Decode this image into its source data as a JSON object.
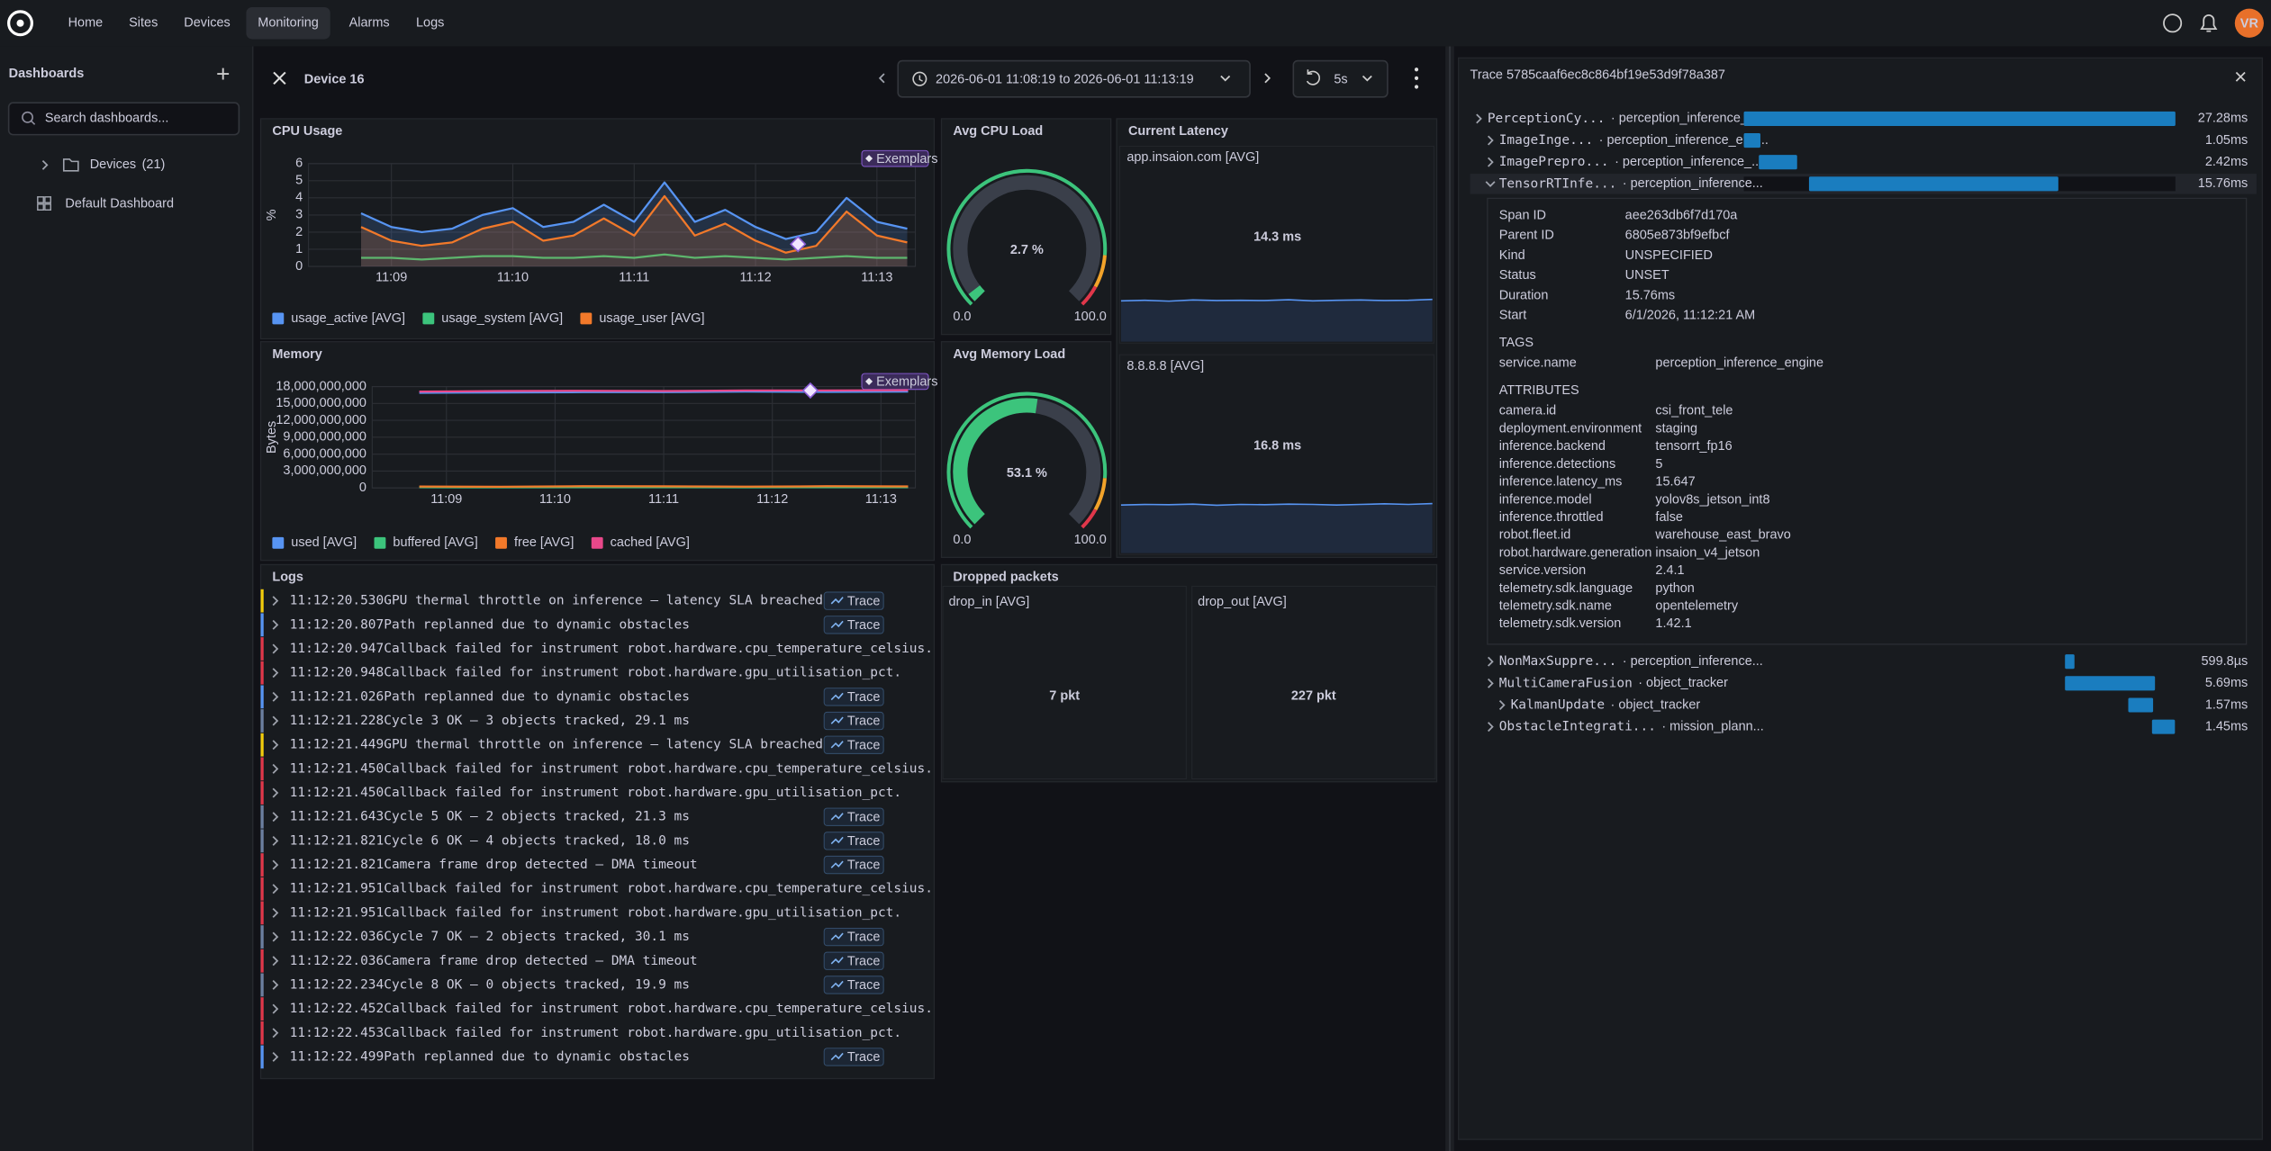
{
  "nav": {
    "items": [
      "Home",
      "Sites",
      "Devices",
      "Monitoring",
      "Alarms",
      "Logs"
    ],
    "active": 3,
    "avatar": "VR"
  },
  "sidebar": {
    "title": "Dashboards",
    "search_placeholder": "Search dashboards...",
    "tree": [
      {
        "label": "Devices",
        "count": "(21)",
        "icon": "folder"
      },
      {
        "label": "Default Dashboard",
        "icon": "dashboard"
      }
    ]
  },
  "header": {
    "title": "Device 16",
    "time_range": "2026-06-01 11:08:19 to 2026-06-01 11:13:19",
    "refresh": "5s"
  },
  "chart_data": [
    {
      "type": "line",
      "title": "CPU Usage",
      "badge": "Exemplars",
      "y_label": "%",
      "grid": true,
      "xlim": [
        "11:08:19",
        "11:13:19"
      ],
      "xticks": [
        "11:09",
        "11:10",
        "11:11",
        "11:12",
        "11:13"
      ],
      "ylim": [
        0,
        6
      ],
      "yticks": [
        0,
        1,
        2,
        3,
        4,
        5,
        6
      ],
      "x": [
        "11:08:45",
        "11:09:00",
        "11:09:15",
        "11:09:30",
        "11:09:45",
        "11:10:00",
        "11:10:15",
        "11:10:30",
        "11:10:45",
        "11:11:00",
        "11:11:15",
        "11:11:30",
        "11:11:45",
        "11:12:00",
        "11:12:15",
        "11:12:30",
        "11:12:45",
        "11:13:00",
        "11:13:15"
      ],
      "series": [
        {
          "name": "usage_active [AVG]",
          "color": "#5794f2",
          "area": true,
          "values": [
            3.1,
            2.3,
            2.0,
            2.2,
            3.0,
            3.4,
            2.3,
            2.6,
            3.6,
            2.6,
            4.9,
            2.6,
            3.3,
            2.3,
            1.6,
            2.0,
            4.0,
            2.6,
            2.2
          ]
        },
        {
          "name": "usage_system [AVG]",
          "color": "#3cc47c",
          "area": false,
          "values": [
            0.5,
            0.5,
            0.4,
            0.5,
            0.6,
            0.6,
            0.5,
            0.5,
            0.6,
            0.5,
            0.7,
            0.5,
            0.6,
            0.5,
            0.4,
            0.5,
            0.6,
            0.5,
            0.5
          ]
        },
        {
          "name": "usage_user [AVG]",
          "color": "#f2792a",
          "area": true,
          "values": [
            2.3,
            1.5,
            1.2,
            1.4,
            2.2,
            2.6,
            1.5,
            1.8,
            2.8,
            1.8,
            4.1,
            1.8,
            2.5,
            1.5,
            0.8,
            1.2,
            3.2,
            1.8,
            1.4
          ]
        }
      ],
      "exemplar": {
        "x": "11:12:21",
        "y": 1.3
      }
    },
    {
      "type": "line",
      "title": "Memory",
      "badge": "Exemplars",
      "y_label": "Bytes",
      "grid": true,
      "xlim": [
        "11:08:19",
        "11:13:19"
      ],
      "xticks": [
        "11:09",
        "11:10",
        "11:11",
        "11:12",
        "11:13"
      ],
      "ylim": [
        0,
        18000000000
      ],
      "yticks": [
        0,
        {
          "value": 3000000000,
          "label": "3,000,000,000"
        },
        {
          "value": 6000000000,
          "label": "6,000,000,000"
        },
        {
          "value": 9000000000,
          "label": "9,000,000,000"
        },
        {
          "value": 12000000000,
          "label": "12,000,000,000"
        },
        {
          "value": 15000000000,
          "label": "15,000,000,000"
        },
        {
          "value": 18000000000,
          "label": "18,000,000,000"
        }
      ],
      "x": [
        "11:08:45",
        "11:09:30",
        "11:10:15",
        "11:11:00",
        "11:11:45",
        "11:12:30",
        "11:13:15"
      ],
      "series": [
        {
          "name": "used [AVG]",
          "color": "#5794f2",
          "area": false,
          "values": [
            16900000000,
            16950000000,
            17000000000,
            17000000000,
            17100000000,
            17050000000,
            17100000000
          ]
        },
        {
          "name": "buffered [AVG]",
          "color": "#3cc47c",
          "area": false,
          "values": [
            120000000,
            110000000,
            130000000,
            120000000,
            110000000,
            130000000,
            120000000
          ]
        },
        {
          "name": "free [AVG]",
          "color": "#f2792a",
          "area": false,
          "values": [
            250000000,
            200000000,
            300000000,
            280000000,
            220000000,
            300000000,
            260000000
          ]
        },
        {
          "name": "cached [AVG]",
          "color": "#e8488a",
          "area": false,
          "values": [
            17100000000,
            17200000000,
            17250000000,
            17200000000,
            17300000000,
            17300000000,
            17350000000
          ]
        }
      ],
      "exemplar": {
        "x": "11:12:21",
        "y": 17300000000
      }
    },
    {
      "type": "gauge",
      "title": "Avg CPU Load",
      "value": 2.7,
      "value_label": "2.7 %",
      "color": "#3cc47c",
      "min": {
        "value": 0,
        "label": "0.0"
      },
      "max": {
        "value": 100,
        "label": "100.0"
      },
      "thresholds": [
        {
          "value": 0,
          "color": "#3cc47c"
        },
        {
          "value": 85,
          "color": "#f2a32a"
        },
        {
          "value": 94,
          "color": "#e0374a"
        }
      ]
    },
    {
      "type": "gauge",
      "title": "Avg Memory Load",
      "value": 53.1,
      "value_label": "53.1 %",
      "color": "#3cc47c",
      "min": {
        "value": 0,
        "label": "0.0"
      },
      "max": {
        "value": 100,
        "label": "100.0"
      },
      "thresholds": [
        {
          "value": 0,
          "color": "#3cc47c"
        },
        {
          "value": 85,
          "color": "#f2a32a"
        },
        {
          "value": 94,
          "color": "#e0374a"
        }
      ]
    }
  ],
  "latency": {
    "title": "Current Latency",
    "spark_ylim": [
      0,
      18
    ],
    "stats": [
      {
        "label": "app.insaion.com [AVG]",
        "value_label": "14.3 ms",
        "spark": [
          14.1,
          14.3,
          14.0,
          14.4,
          14.2,
          14.3,
          14.2,
          14.5,
          14.1,
          14.3,
          14.4,
          14.2,
          14.3,
          14.6
        ]
      },
      {
        "label": "8.8.8.8 [AVG]",
        "value_label": "16.8 ms",
        "spark": [
          16.6,
          16.8,
          16.7,
          16.9,
          16.5,
          16.8,
          16.7,
          16.9,
          16.8,
          16.6,
          16.8,
          17.0,
          16.8,
          17.1
        ]
      }
    ]
  },
  "dropped_packets": {
    "title": "Dropped packets",
    "stats": [
      {
        "label": "drop_in [AVG]",
        "value_label": "7 pkt"
      },
      {
        "label": "drop_out [AVG]",
        "value_label": "227 pkt"
      }
    ]
  },
  "logs": {
    "title": "Logs",
    "trace_label": "Trace",
    "rows": [
      {
        "time": "11:12:20.530",
        "message": "GPU thermal throttle on inference — latency SLA breached",
        "color": "#f2cc0c",
        "trace": true
      },
      {
        "time": "11:12:20.807",
        "message": "Path replanned due to dynamic obstacles",
        "color": "#5794f2",
        "trace": true
      },
      {
        "time": "11:12:20.947",
        "message": "Callback failed for instrument robot.hardware.cpu_temperature_celsius.",
        "color": "#e0374a",
        "trace": false
      },
      {
        "time": "11:12:20.948",
        "message": "Callback failed for instrument robot.hardware.gpu_utilisation_pct.",
        "color": "#e0374a",
        "trace": false
      },
      {
        "time": "11:12:21.026",
        "message": "Path replanned due to dynamic obstacles",
        "color": "#5794f2",
        "trace": true
      },
      {
        "time": "11:12:21.228",
        "message": "Cycle 3 OK — 3 objects tracked, 29.1 ms",
        "color": "#6c7fa0",
        "trace": true
      },
      {
        "time": "11:12:21.449",
        "message": "GPU thermal throttle on inference — latency SLA breached",
        "color": "#f2cc0c",
        "trace": true
      },
      {
        "time": "11:12:21.450",
        "message": "Callback failed for instrument robot.hardware.cpu_temperature_celsius.",
        "color": "#e0374a",
        "trace": false
      },
      {
        "time": "11:12:21.450",
        "message": "Callback failed for instrument robot.hardware.gpu_utilisation_pct.",
        "color": "#e0374a",
        "trace": false
      },
      {
        "time": "11:12:21.643",
        "message": "Cycle 5 OK — 2 objects tracked, 21.3 ms",
        "color": "#6c7fa0",
        "trace": true
      },
      {
        "time": "11:12:21.821",
        "message": "Cycle 6 OK — 4 objects tracked, 18.0 ms",
        "color": "#6c7fa0",
        "trace": true
      },
      {
        "time": "11:12:21.821",
        "message": "Camera frame drop detected — DMA timeout",
        "color": "#e0374a",
        "trace": true
      },
      {
        "time": "11:12:21.951",
        "message": "Callback failed for instrument robot.hardware.cpu_temperature_celsius.",
        "color": "#e0374a",
        "trace": false
      },
      {
        "time": "11:12:21.951",
        "message": "Callback failed for instrument robot.hardware.gpu_utilisation_pct.",
        "color": "#e0374a",
        "trace": false
      },
      {
        "time": "11:12:22.036",
        "message": "Cycle 7 OK — 2 objects tracked, 30.1 ms",
        "color": "#6c7fa0",
        "trace": true
      },
      {
        "time": "11:12:22.036",
        "message": "Camera frame drop detected — DMA timeout",
        "color": "#e0374a",
        "trace": true
      },
      {
        "time": "11:12:22.234",
        "message": "Cycle 8 OK — 0 objects tracked, 19.9 ms",
        "color": "#6c7fa0",
        "trace": true
      },
      {
        "time": "11:12:22.452",
        "message": "Callback failed for instrument robot.hardware.cpu_temperature_celsius.",
        "color": "#e0374a",
        "trace": false
      },
      {
        "time": "11:12:22.453",
        "message": "Callback failed for instrument robot.hardware.gpu_utilisation_pct.",
        "color": "#e0374a",
        "trace": false
      },
      {
        "time": "11:12:22.499",
        "message": "Path replanned due to dynamic obstacles",
        "color": "#5794f2",
        "trace": true
      }
    ]
  },
  "trace": {
    "title": "Trace 5785caaf6ec8c864bf19e53d9f78a387",
    "xlim": [
      0,
      27.28
    ],
    "bar_color": "#1a7dbf",
    "spans": [
      {
        "name": "PerceptionCy...",
        "service": "· perception_inference_e...",
        "start": 0,
        "duration": 27.28,
        "duration_label": "27.28ms",
        "depth": 0,
        "selected": false
      },
      {
        "name": "ImageInge...",
        "service": "· perception_inference_eng...",
        "start": 0,
        "duration": 1.05,
        "duration_label": "1.05ms",
        "depth": 1,
        "selected": false
      },
      {
        "name": "ImagePrepro...",
        "service": "· perception_inference_...",
        "start": 0.95,
        "duration": 2.42,
        "duration_label": "2.42ms",
        "depth": 1,
        "selected": false
      },
      {
        "name": "TensorRTInfe...",
        "service": "· perception_inference...",
        "start": 4.12,
        "duration": 15.76,
        "duration_label": "15.76ms",
        "depth": 1,
        "selected": true
      },
      {
        "name": "NonMaxSuppre...",
        "service": "· perception_inference...",
        "start": 20.3,
        "duration": 0.5998,
        "duration_label": "599.8µs",
        "depth": 1,
        "selected": false
      },
      {
        "name": "MultiCameraFusion",
        "service": "· object_tracker",
        "start": 20.3,
        "duration": 5.69,
        "duration_label": "5.69ms",
        "depth": 1,
        "selected": false
      },
      {
        "name": "KalmanUpdate",
        "service": "· object_tracker",
        "start": 24.3,
        "duration": 1.57,
        "duration_label": "1.57ms",
        "depth": 2,
        "selected": false
      },
      {
        "name": "ObstacleIntegrati...",
        "service": "· mission_plann...",
        "start": 25.8,
        "duration": 1.45,
        "duration_label": "1.45ms",
        "depth": 1,
        "selected": false
      }
    ],
    "detail": {
      "fields": [
        {
          "key": "Span ID",
          "value": "aee263db6f7d170a"
        },
        {
          "key": "Parent ID",
          "value": "6805e873bf9efbcf"
        },
        {
          "key": "Kind",
          "value": "UNSPECIFIED"
        },
        {
          "key": "Status",
          "value": "UNSET"
        },
        {
          "key": "Duration",
          "value": "15.76ms"
        },
        {
          "key": "Start",
          "value": "6/1/2026, 11:12:21 AM"
        }
      ],
      "tags_title": "TAGS",
      "tags": [
        {
          "key": "service.name",
          "value": "perception_inference_engine"
        }
      ],
      "attributes_title": "ATTRIBUTES",
      "attributes": [
        {
          "key": "camera.id",
          "value": "csi_front_tele"
        },
        {
          "key": "deployment.environment",
          "value": "staging"
        },
        {
          "key": "inference.backend",
          "value": "tensorrt_fp16"
        },
        {
          "key": "inference.detections",
          "value": "5"
        },
        {
          "key": "inference.latency_ms",
          "value": "15.647"
        },
        {
          "key": "inference.model",
          "value": "yolov8s_jetson_int8"
        },
        {
          "key": "inference.throttled",
          "value": "false"
        },
        {
          "key": "robot.fleet.id",
          "value": "warehouse_east_bravo"
        },
        {
          "key": "robot.hardware.generation",
          "value": "insaion_v4_jetson"
        },
        {
          "key": "service.version",
          "value": "2.4.1"
        },
        {
          "key": "telemetry.sdk.language",
          "value": "python"
        },
        {
          "key": "telemetry.sdk.name",
          "value": "opentelemetry"
        },
        {
          "key": "telemetry.sdk.version",
          "value": "1.42.1"
        }
      ]
    }
  }
}
